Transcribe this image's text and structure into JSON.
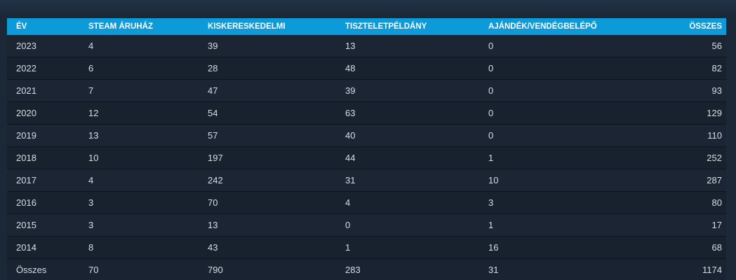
{
  "table": {
    "headers": [
      "ÉV",
      "STEAM ÁRUHÁZ",
      "KISKERESKEDELMI",
      "TISZTELETPÉLDÁNY",
      "AJÁNDÉK/VENDÉGBELÉPŐ",
      "ÖSSZES"
    ],
    "rows": [
      [
        "2023",
        "4",
        "39",
        "13",
        "0",
        "56"
      ],
      [
        "2022",
        "6",
        "28",
        "48",
        "0",
        "82"
      ],
      [
        "2021",
        "7",
        "47",
        "39",
        "0",
        "93"
      ],
      [
        "2020",
        "12",
        "54",
        "63",
        "0",
        "129"
      ],
      [
        "2019",
        "13",
        "57",
        "40",
        "0",
        "110"
      ],
      [
        "2018",
        "10",
        "197",
        "44",
        "1",
        "252"
      ],
      [
        "2017",
        "4",
        "242",
        "31",
        "10",
        "287"
      ],
      [
        "2016",
        "3",
        "70",
        "4",
        "3",
        "80"
      ],
      [
        "2015",
        "3",
        "13",
        "0",
        "1",
        "17"
      ],
      [
        "2014",
        "8",
        "43",
        "1",
        "16",
        "68"
      ]
    ],
    "totals": [
      "Összes",
      "70",
      "790",
      "283",
      "31",
      "1174"
    ]
  },
  "colors": {
    "header_bg": "#0d9ad8",
    "page_bg": "#1b2838",
    "text": "#d6dde4"
  }
}
